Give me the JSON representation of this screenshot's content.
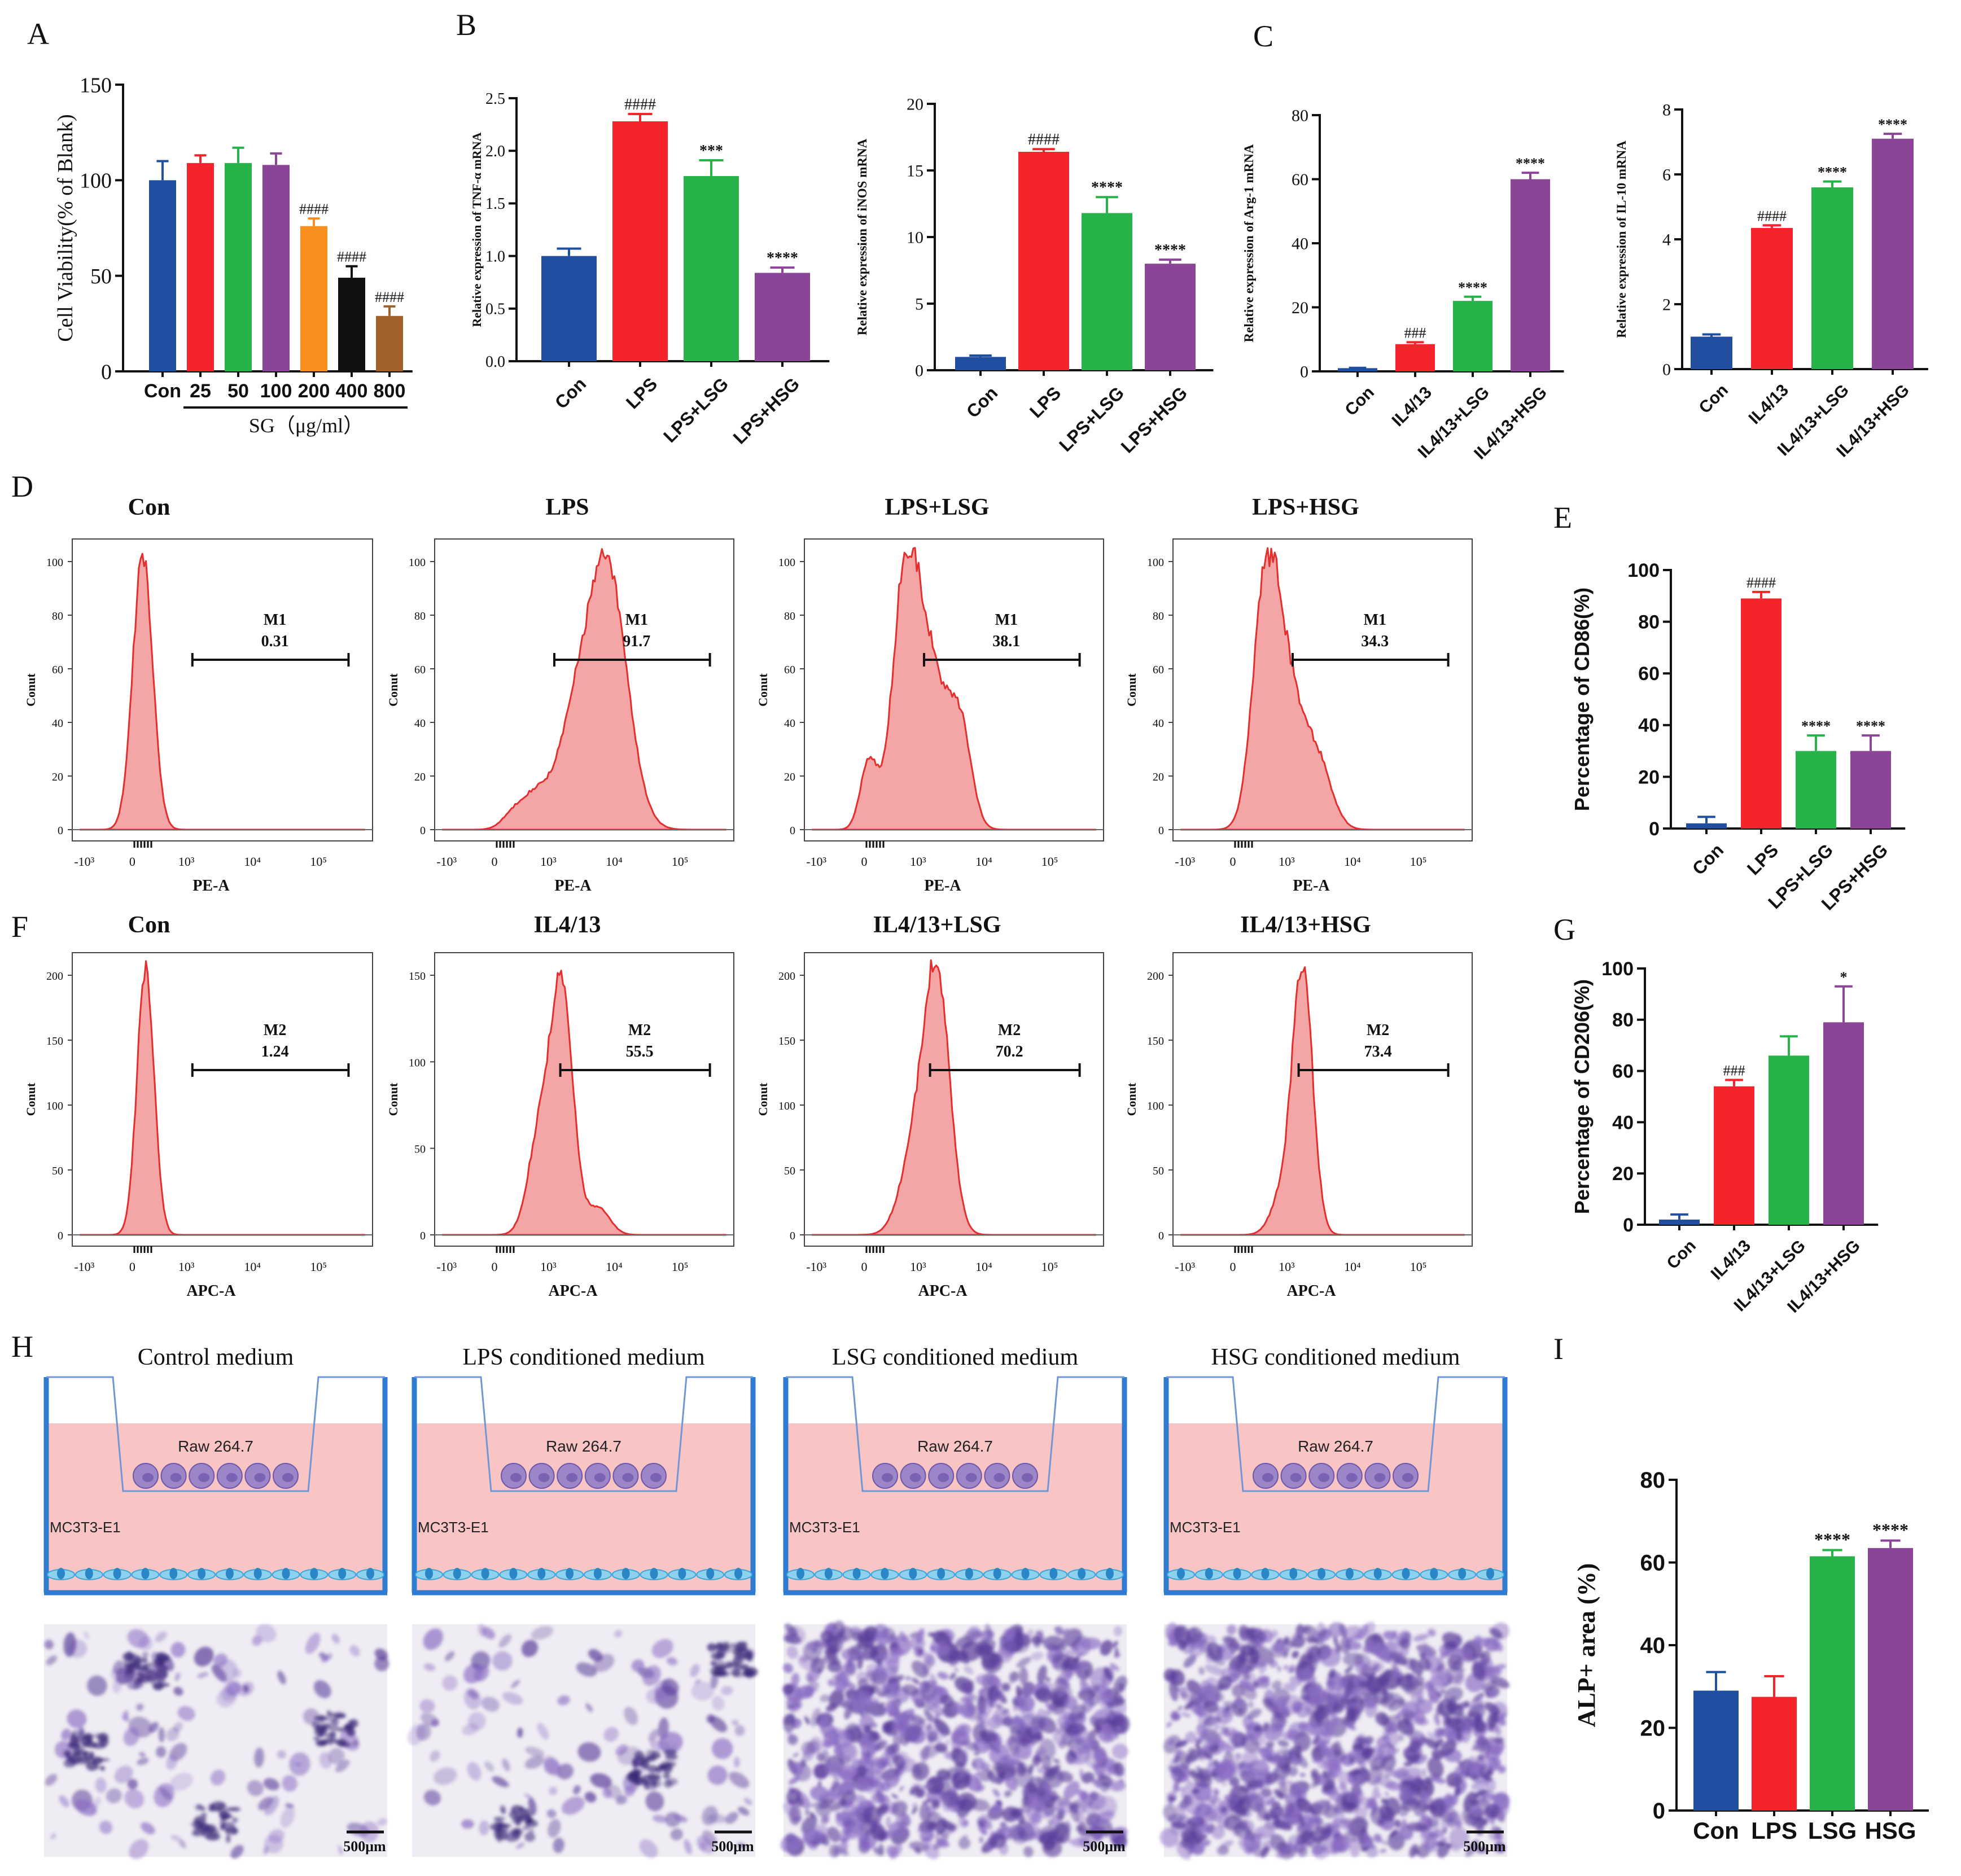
{
  "panel_letters": [
    "A",
    "B",
    "C",
    "D",
    "E",
    "F",
    "G",
    "H",
    "I"
  ],
  "chart_data": [
    {
      "id": "A",
      "type": "bar",
      "ylabel": "Cell Viability(% of Blank)",
      "categories": [
        "Con",
        "25",
        "50",
        "100",
        "200",
        "400",
        "800"
      ],
      "values": [
        100,
        109,
        109,
        108,
        76,
        49,
        29
      ],
      "errors": [
        10,
        4,
        8,
        6,
        4,
        6,
        5
      ],
      "colors": [
        "#1f4f9e",
        "#f5232b",
        "#27b24a",
        "#8b4596",
        "#f7901e",
        "#111111",
        "#a0622a"
      ],
      "marks": [
        "",
        "",
        "",
        "",
        "####",
        "####",
        "####"
      ],
      "ylim": [
        0,
        150
      ],
      "yticks": [
        0,
        50,
        100,
        150
      ],
      "group_label": "SG（μg/ml）"
    },
    {
      "id": "B1",
      "type": "bar",
      "ylabel": "Relative expression of TNF-α mRNA",
      "categories": [
        "Con",
        "LPS",
        "LPS+LSG",
        "LPS+HSG"
      ],
      "values": [
        1.0,
        2.28,
        1.76,
        0.84
      ],
      "errors": [
        0.07,
        0.07,
        0.15,
        0.05
      ],
      "colors": [
        "#1f4f9e",
        "#f5232b",
        "#27b24a",
        "#8b4596"
      ],
      "marks": [
        "",
        "####",
        "***",
        "****"
      ],
      "ylim": [
        0,
        2.5
      ],
      "yticks": [
        "0.0",
        "0.5",
        "1.0",
        "1.5",
        "2.0",
        "2.5"
      ]
    },
    {
      "id": "B2",
      "type": "bar",
      "ylabel": "Relative expression of iNOS mRNA",
      "categories": [
        "Con",
        "LPS",
        "LPS+LSG",
        "LPS+HSG"
      ],
      "values": [
        1.0,
        16.4,
        11.8,
        8.0
      ],
      "errors": [
        0.1,
        0.2,
        1.2,
        0.3
      ],
      "colors": [
        "#1f4f9e",
        "#f5232b",
        "#27b24a",
        "#8b4596"
      ],
      "marks": [
        "",
        "####",
        "****",
        "****"
      ],
      "ylim": [
        0,
        20
      ],
      "yticks": [
        0,
        5,
        10,
        15,
        20
      ]
    },
    {
      "id": "C1",
      "type": "bar",
      "ylabel": "Relative expression of Arg-1 mRNA",
      "categories": [
        "Con",
        "IL4/13",
        "IL4/13+LSG",
        "IL4/13+HSG"
      ],
      "values": [
        1.0,
        8.5,
        22.0,
        60.0
      ],
      "errors": [
        0.1,
        0.6,
        1.3,
        2.0
      ],
      "colors": [
        "#1f4f9e",
        "#f5232b",
        "#27b24a",
        "#8b4596"
      ],
      "marks": [
        "",
        "###",
        "****",
        "****"
      ],
      "ylim": [
        0,
        80
      ],
      "yticks": [
        0,
        20,
        40,
        60,
        80
      ]
    },
    {
      "id": "C2",
      "type": "bar",
      "ylabel": "Relative expression of IL-10 mRNA",
      "categories": [
        "Con",
        "IL4/13",
        "IL4/13+LSG",
        "IL4/13+HSG"
      ],
      "values": [
        1.0,
        4.35,
        5.6,
        7.1
      ],
      "errors": [
        0.07,
        0.08,
        0.18,
        0.15
      ],
      "colors": [
        "#1f4f9e",
        "#f5232b",
        "#27b24a",
        "#8b4596"
      ],
      "marks": [
        "",
        "####",
        "****",
        "****"
      ],
      "ylim": [
        0,
        8
      ],
      "yticks": [
        0,
        2,
        4,
        6,
        8
      ]
    },
    {
      "id": "E",
      "type": "bar",
      "ylabel": "Percentage of CD86(%)",
      "categories": [
        "Con",
        "LPS",
        "LPS+LSG",
        "LPS+HSG"
      ],
      "values": [
        2,
        89,
        30,
        30
      ],
      "errors": [
        2.5,
        2.5,
        6.0,
        6.0
      ],
      "colors": [
        "#1f4f9e",
        "#f5232b",
        "#27b24a",
        "#8b4596"
      ],
      "marks": [
        "",
        "####",
        "****",
        "****"
      ],
      "ylim": [
        0,
        100
      ],
      "yticks": [
        0,
        20,
        40,
        60,
        80,
        100
      ]
    },
    {
      "id": "G",
      "type": "bar",
      "ylabel": "Percentage of CD206(%)",
      "categories": [
        "Con",
        "IL4/13",
        "IL4/13+LSG",
        "IL4/13+HSG"
      ],
      "values": [
        2,
        54,
        66,
        79
      ],
      "errors": [
        2.0,
        2.5,
        7.5,
        14.0
      ],
      "colors": [
        "#1f4f9e",
        "#f5232b",
        "#27b24a",
        "#8b4596"
      ],
      "marks": [
        "",
        "###",
        "",
        "*"
      ],
      "ylim": [
        0,
        100
      ],
      "yticks": [
        0,
        20,
        40,
        60,
        80,
        100
      ]
    },
    {
      "id": "I",
      "type": "bar",
      "ylabel": "ALP+ area (%)",
      "categories": [
        "Con",
        "LPS",
        "LSG",
        "HSG"
      ],
      "values": [
        29,
        27.5,
        61.5,
        63.5
      ],
      "errors": [
        4.5,
        5.0,
        1.5,
        1.8
      ],
      "colors": [
        "#1f4f9e",
        "#f5232b",
        "#27b24a",
        "#8b4596"
      ],
      "marks": [
        "",
        "",
        "****",
        "****"
      ],
      "ylim": [
        0,
        80
      ],
      "yticks": [
        0,
        20,
        40,
        60,
        80
      ]
    }
  ],
  "flow": {
    "ylabel": "Conut",
    "x_ticks": [
      "-10³",
      "0",
      "10³",
      "10⁴",
      "10⁵"
    ],
    "row_d": {
      "xlabel": "PE-A",
      "gate": "M1",
      "titles": [
        "Con",
        "LPS",
        "LPS+LSG",
        "LPS+HSG"
      ],
      "values": [
        "0.31",
        "91.7",
        "38.1",
        "34.3"
      ],
      "y_ticks": [
        "0",
        "20",
        "40",
        "60",
        "80",
        "100"
      ]
    },
    "row_f": {
      "xlabel": "APC-A",
      "gate": "M2",
      "titles": [
        "Con",
        "IL4/13",
        "IL4/13+LSG",
        "IL4/13+HSG"
      ],
      "values": [
        "1.24",
        "55.5",
        "70.2",
        "73.4"
      ],
      "y_tick_sets": [
        [
          "0",
          "50",
          "100",
          "150",
          "200"
        ],
        [
          "0",
          "50",
          "100",
          "150"
        ],
        [
          "0",
          "50",
          "100",
          "150",
          "200"
        ],
        [
          "0",
          "50",
          "100",
          "150",
          "200"
        ]
      ]
    }
  },
  "transwell": {
    "titles": [
      "Control medium",
      "LPS conditioned medium",
      "LSG conditioned medium",
      "HSG conditioned medium"
    ],
    "upper_label": "Raw 264.7",
    "lower_label": "MC3T3-E1",
    "scale_bar": "500μm"
  },
  "colors": {
    "medium": "#f8c4c4",
    "well": "#2e7bd1",
    "cell_purple": "#9d86c8",
    "cell_blue": "#3aa8d8",
    "histogram": "#f4a5a5",
    "histogram_edge": "#e3302f",
    "stain": "#5a3d9a"
  }
}
